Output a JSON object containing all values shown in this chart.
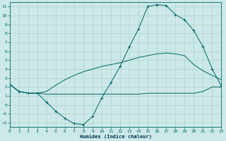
{
  "xlabel": "Humidex (Indice chaleur)",
  "bg_color": "#cce8e8",
  "grid_color": "#aad4cc",
  "line_color": "#006666",
  "xlim": [
    0,
    23
  ],
  "ylim": [
    -2.5,
    11.5
  ],
  "xticks": [
    0,
    1,
    2,
    3,
    4,
    5,
    6,
    7,
    8,
    9,
    10,
    11,
    12,
    13,
    14,
    15,
    16,
    17,
    18,
    19,
    20,
    21,
    22,
    23
  ],
  "yticks": [
    -2,
    -1,
    0,
    1,
    2,
    3,
    4,
    5,
    6,
    7,
    8,
    9,
    10,
    11
  ],
  "curve_flat_x": [
    0,
    1,
    2,
    3,
    4,
    5,
    6,
    7,
    8,
    9,
    10,
    11,
    12,
    13,
    14,
    15,
    16,
    17,
    18,
    19,
    20,
    21,
    22,
    23
  ],
  "curve_flat_y": [
    2.3,
    1.5,
    1.3,
    1.3,
    1.2,
    1.2,
    1.2,
    1.2,
    1.2,
    1.2,
    1.2,
    1.2,
    1.2,
    1.2,
    1.2,
    1.3,
    1.3,
    1.3,
    1.3,
    1.3,
    1.3,
    1.5,
    2.0,
    2.0
  ],
  "curve_mid_x": [
    0,
    1,
    2,
    3,
    4,
    5,
    6,
    7,
    8,
    9,
    10,
    11,
    12,
    13,
    14,
    15,
    16,
    17,
    18,
    19,
    20,
    21,
    22,
    23
  ],
  "curve_mid_y": [
    2.3,
    1.5,
    1.3,
    1.3,
    1.5,
    2.2,
    2.8,
    3.3,
    3.7,
    4.0,
    4.3,
    4.5,
    4.7,
    5.0,
    5.3,
    5.5,
    5.7,
    5.8,
    5.7,
    5.5,
    4.5,
    3.8,
    3.3,
    2.8
  ],
  "curve_main_x": [
    0,
    1,
    2,
    3,
    4,
    5,
    6,
    7,
    8,
    9,
    10,
    11,
    12,
    13,
    14,
    15,
    16,
    17,
    18,
    19,
    20,
    21,
    22,
    23
  ],
  "curve_main_y": [
    2.3,
    1.5,
    1.3,
    1.3,
    0.3,
    -0.7,
    -1.5,
    -2.1,
    -2.2,
    -1.3,
    0.8,
    2.5,
    4.3,
    6.5,
    8.5,
    11.0,
    11.2,
    11.1,
    10.1,
    9.5,
    8.3,
    6.5,
    4.0,
    2.1
  ]
}
